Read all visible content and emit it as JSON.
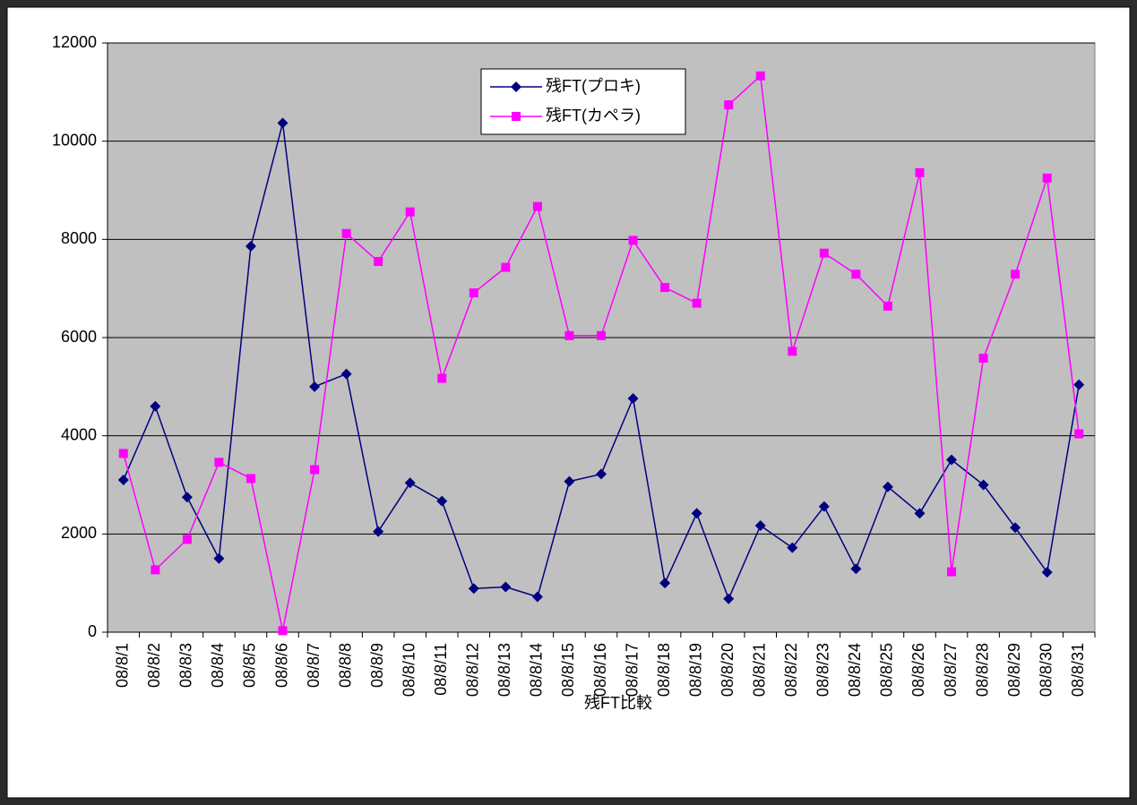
{
  "chart_data": {
    "type": "line",
    "x_label": "残FT比較",
    "categories": [
      "08/8/1",
      "08/8/2",
      "08/8/3",
      "08/8/4",
      "08/8/5",
      "08/8/6",
      "08/8/7",
      "08/8/8",
      "08/8/9",
      "08/8/10",
      "08/8/11",
      "08/8/12",
      "08/8/13",
      "08/8/14",
      "08/8/15",
      "08/8/16",
      "08/8/17",
      "08/8/18",
      "08/8/19",
      "08/8/20",
      "08/8/21",
      "08/8/22",
      "08/8/23",
      "08/8/24",
      "08/8/25",
      "08/8/26",
      "08/8/27",
      "08/8/28",
      "08/8/29",
      "08/8/30",
      "08/8/31"
    ],
    "series": [
      {
        "name": "残FT(プロキ)",
        "color": "#000080",
        "marker": "diamond",
        "values": [
          3100,
          4600,
          2750,
          1500,
          7860,
          10370,
          5000,
          5260,
          2050,
          3040,
          2670,
          890,
          920,
          720,
          3070,
          3220,
          4760,
          1000,
          2420,
          680,
          2170,
          1720,
          2560,
          1290,
          2960,
          2420,
          3510,
          3000,
          2130,
          1220,
          5040
        ]
      },
      {
        "name": "残FT(カペラ)",
        "color": "#ff00ff",
        "marker": "square",
        "values": [
          3640,
          1270,
          1890,
          3460,
          3130,
          30,
          3310,
          8120,
          7550,
          8560,
          5170,
          6910,
          7430,
          8670,
          6040,
          6040,
          7980,
          7020,
          6700,
          10740,
          11330,
          5720,
          7720,
          7290,
          6640,
          9360,
          1230,
          5580,
          7290,
          9250,
          4040
        ]
      }
    ],
    "ylim": [
      0,
      12000
    ],
    "yticks": [
      0,
      2000,
      4000,
      6000,
      8000,
      10000,
      12000
    ],
    "grid": true,
    "legend": "top",
    "plot_background": "#c0c0c0"
  }
}
